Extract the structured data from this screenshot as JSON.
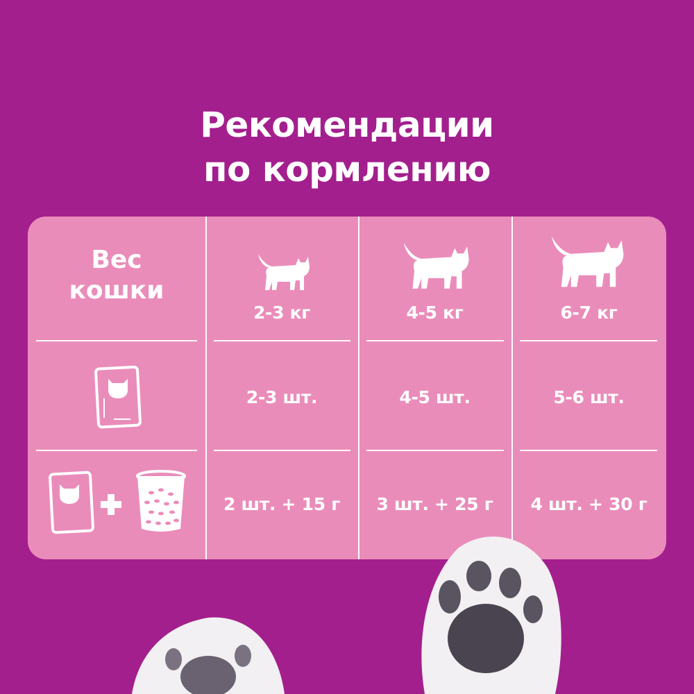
{
  "title": {
    "line1": "Рекомендации",
    "line2": "по кормлению"
  },
  "colors": {
    "background": "#a31f8d",
    "table": "#ea8cba",
    "text": "#ffffff"
  },
  "table": {
    "header_label": {
      "line1": "Вес",
      "line2": "кошки"
    },
    "columns": [
      {
        "icon": "small-cat-icon",
        "weight": "2-3 кг",
        "pouches": "2-3 шт.",
        "mixed": "2 шт. + 15 г"
      },
      {
        "icon": "medium-cat-icon",
        "weight": "4-5 кг",
        "pouches": "4-5 шт.",
        "mixed": "3 шт. + 25 г"
      },
      {
        "icon": "large-cat-icon",
        "weight": "6-7 кг",
        "pouches": "5-6 шт.",
        "mixed": "4 шт. + 30 г"
      }
    ],
    "row_icons": [
      "pouch-icon",
      "pouch-plus-dry-food-icon"
    ]
  }
}
